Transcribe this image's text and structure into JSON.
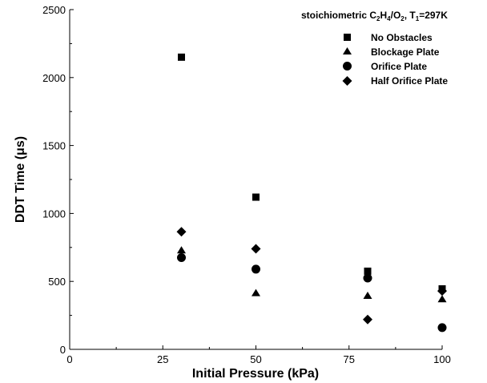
{
  "chart_data": {
    "type": "scatter",
    "title_parts": {
      "prefix": "stoichiometric C",
      "sub1": "2",
      "mid1": "H",
      "sub2": "4",
      "mid2": "/O",
      "sub3": "2",
      "mid3": ", T",
      "sub4": "1",
      "suffix": "=297K"
    },
    "xlabel": "Initial Pressure (kPa)",
    "ylabel_prefix": "DDT  Time (",
    "ylabel_mu": "μ",
    "ylabel_suffix": "s)",
    "xlim": [
      0,
      100
    ],
    "ylim": [
      0,
      2500
    ],
    "xticks": [
      0,
      25,
      50,
      75,
      100
    ],
    "yticks": [
      0,
      500,
      1000,
      1500,
      2000,
      2500
    ],
    "grid": false,
    "legend_position": "top-right",
    "series": [
      {
        "name": "No Obstacles",
        "marker": "square",
        "x": [
          30,
          50,
          80,
          100
        ],
        "y": [
          2150,
          1120,
          575,
          445
        ]
      },
      {
        "name": "Blockage Plate",
        "marker": "triangle",
        "x": [
          30,
          50,
          80,
          100
        ],
        "y": [
          730,
          415,
          395,
          370
        ]
      },
      {
        "name": "Orifice Plate",
        "marker": "circle",
        "x": [
          30,
          50,
          80,
          100
        ],
        "y": [
          675,
          590,
          525,
          160
        ]
      },
      {
        "name": "Half Orifice Plate",
        "marker": "diamond",
        "x": [
          30,
          50,
          80,
          100
        ],
        "y": [
          865,
          740,
          220,
          430
        ]
      }
    ]
  }
}
